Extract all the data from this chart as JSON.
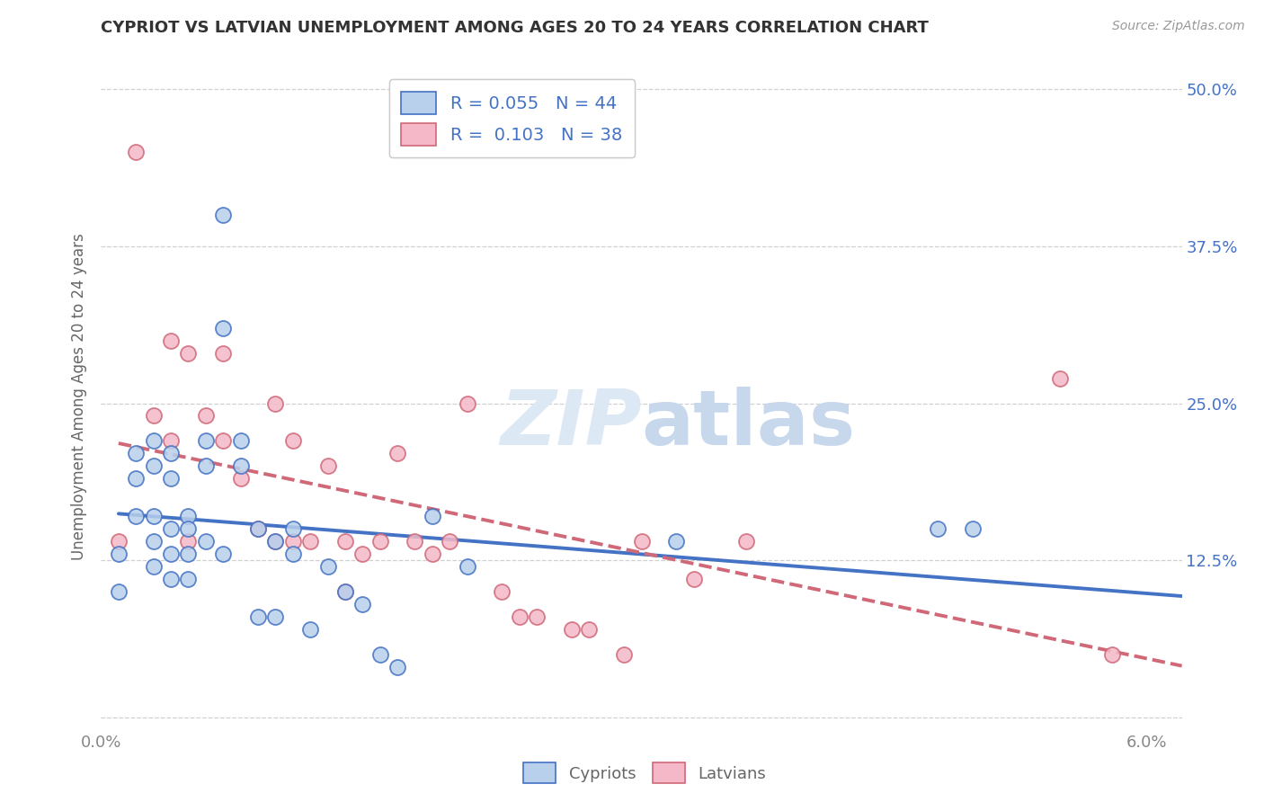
{
  "title": "CYPRIOT VS LATVIAN UNEMPLOYMENT AMONG AGES 20 TO 24 YEARS CORRELATION CHART",
  "source": "Source: ZipAtlas.com",
  "ylabel": "Unemployment Among Ages 20 to 24 years",
  "xlim": [
    0.0,
    0.062
  ],
  "ylim": [
    -0.01,
    0.52
  ],
  "xticks": [
    0.0,
    0.01,
    0.02,
    0.03,
    0.04,
    0.05,
    0.06
  ],
  "yticks": [
    0.0,
    0.125,
    0.25,
    0.375,
    0.5
  ],
  "xticklabels": [
    "0.0%",
    "",
    "",
    "",
    "",
    "",
    "6.0%"
  ],
  "left_yticklabels": [
    "",
    "",
    "",
    "",
    ""
  ],
  "right_yticklabels": [
    "",
    "12.5%",
    "25.0%",
    "37.5%",
    "50.0%"
  ],
  "cypriot_R": 0.055,
  "cypriot_N": 44,
  "latvian_R": 0.103,
  "latvian_N": 38,
  "cypriot_scatter_face": "#b8d0ec",
  "cypriot_scatter_edge": "#4472c4",
  "latvian_scatter_face": "#f4b8c8",
  "latvian_scatter_edge": "#d06878",
  "cypriot_line_color": "#4472c4",
  "latvian_line_color": "#d06878",
  "legend_text_color": "#4472c4",
  "watermark_color": "#dde8f5",
  "background_color": "#ffffff",
  "grid_color": "#d0d0d0",
  "title_color": "#333333",
  "axis_label_color": "#666666",
  "right_tick_color": "#4472c4",
  "cypriot_x": [
    0.001,
    0.001,
    0.002,
    0.002,
    0.002,
    0.003,
    0.003,
    0.003,
    0.003,
    0.003,
    0.004,
    0.004,
    0.004,
    0.004,
    0.004,
    0.005,
    0.005,
    0.005,
    0.005,
    0.006,
    0.006,
    0.006,
    0.007,
    0.007,
    0.007,
    0.008,
    0.008,
    0.009,
    0.009,
    0.01,
    0.01,
    0.011,
    0.011,
    0.012,
    0.013,
    0.014,
    0.015,
    0.016,
    0.017,
    0.019,
    0.021,
    0.033,
    0.048,
    0.05
  ],
  "cypriot_y": [
    0.13,
    0.1,
    0.21,
    0.19,
    0.16,
    0.22,
    0.2,
    0.16,
    0.14,
    0.12,
    0.21,
    0.19,
    0.15,
    0.13,
    0.11,
    0.16,
    0.15,
    0.13,
    0.11,
    0.22,
    0.2,
    0.14,
    0.4,
    0.31,
    0.13,
    0.22,
    0.2,
    0.15,
    0.08,
    0.14,
    0.08,
    0.15,
    0.13,
    0.07,
    0.12,
    0.1,
    0.09,
    0.05,
    0.04,
    0.16,
    0.12,
    0.14,
    0.15,
    0.15
  ],
  "latvian_x": [
    0.001,
    0.002,
    0.003,
    0.004,
    0.004,
    0.005,
    0.005,
    0.006,
    0.007,
    0.007,
    0.008,
    0.009,
    0.01,
    0.01,
    0.011,
    0.011,
    0.012,
    0.013,
    0.014,
    0.014,
    0.015,
    0.016,
    0.017,
    0.018,
    0.019,
    0.02,
    0.021,
    0.023,
    0.024,
    0.025,
    0.027,
    0.028,
    0.03,
    0.031,
    0.034,
    0.037,
    0.055,
    0.058
  ],
  "latvian_y": [
    0.14,
    0.45,
    0.24,
    0.3,
    0.22,
    0.29,
    0.14,
    0.24,
    0.29,
    0.22,
    0.19,
    0.15,
    0.25,
    0.14,
    0.22,
    0.14,
    0.14,
    0.2,
    0.14,
    0.1,
    0.13,
    0.14,
    0.21,
    0.14,
    0.13,
    0.14,
    0.25,
    0.1,
    0.08,
    0.08,
    0.07,
    0.07,
    0.05,
    0.14,
    0.11,
    0.14,
    0.27,
    0.05
  ]
}
